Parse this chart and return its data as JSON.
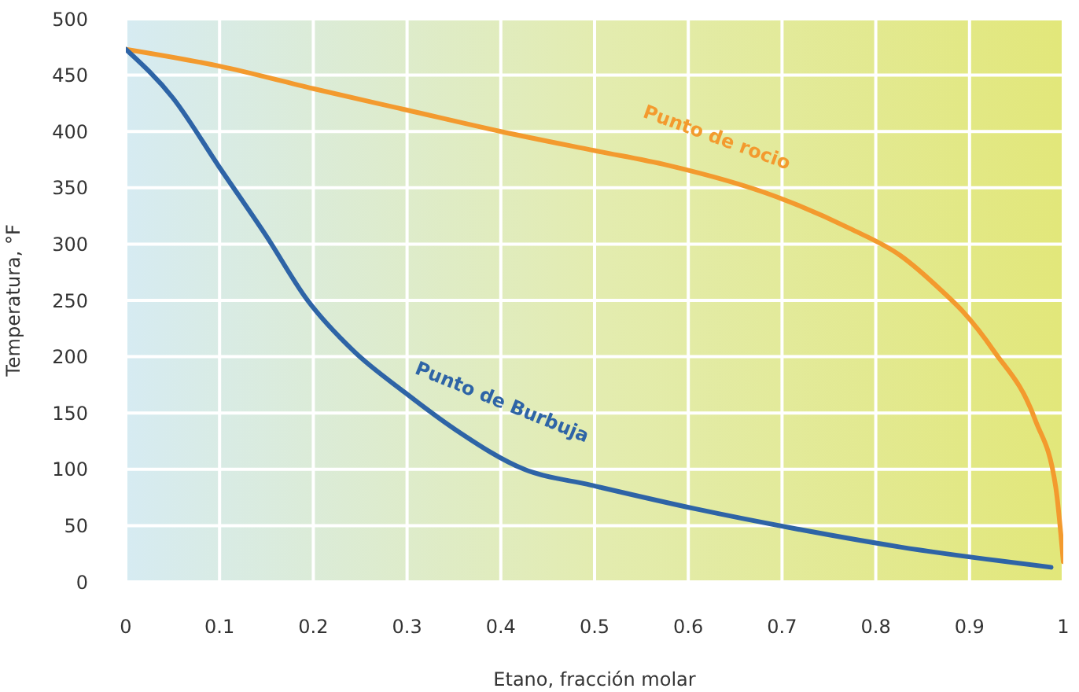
{
  "chart_data": {
    "type": "line",
    "xlabel": "Etano, fracción molar",
    "ylabel": "Temperatura, °F",
    "xlim": [
      0,
      1
    ],
    "xticks": [
      0,
      0.1,
      0.2,
      0.3,
      0.4,
      0.5,
      0.6,
      0.7,
      0.8,
      0.9,
      1
    ],
    "ylim": [
      0,
      500
    ],
    "yticks": [
      0,
      50,
      100,
      150,
      200,
      250,
      300,
      350,
      400,
      450,
      500
    ],
    "grid": true,
    "legend": false,
    "marker": "none",
    "line_style": "solid",
    "series": [
      {
        "name": "Punto de rocio",
        "color": "#f39a2e",
        "x": [
          0,
          0.1,
          0.2,
          0.3,
          0.4,
          0.5,
          0.578,
          0.694,
          0.772,
          0.826,
          0.871,
          0.893,
          0.926,
          0.97,
          0.992,
          1
        ],
        "values": [
          473,
          458,
          438,
          419,
          400,
          383,
          370,
          342,
          314,
          290,
          258,
          240,
          205,
          144,
          84,
          18
        ]
      },
      {
        "name": "Punto de Burbuja",
        "color": "#2e64a6",
        "x": [
          0,
          0.05,
          0.1,
          0.15,
          0.193,
          0.243,
          0.298,
          0.352,
          0.425,
          0.496,
          0.607,
          0.716,
          0.826,
          0.987
        ],
        "values": [
          473,
          430,
          368,
          307,
          251,
          205,
          168,
          135,
          100,
          86,
          65,
          47,
          31,
          13
        ]
      }
    ]
  }
}
